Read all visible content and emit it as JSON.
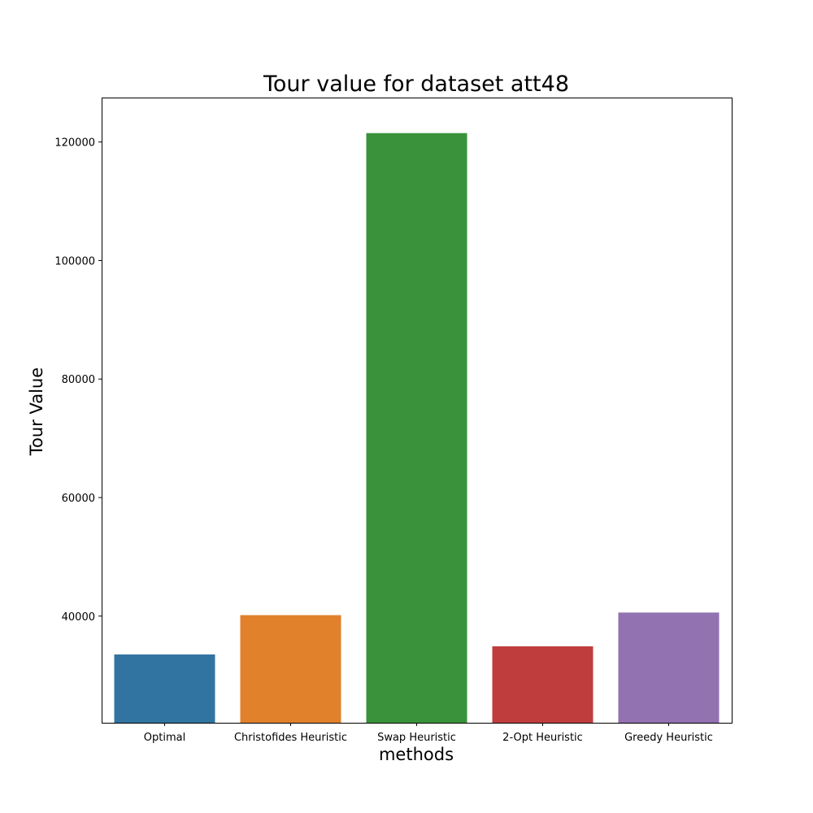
{
  "chart_data": {
    "type": "bar",
    "title": "Tour value for dataset att48",
    "xlabel": "methods",
    "ylabel": "Tour Value",
    "categories": [
      "Optimal",
      "Christofides Heuristic",
      "Swap Heuristic",
      "2-Opt Heuristic",
      "Greedy Heuristic"
    ],
    "values": [
      33523,
      40159,
      121500,
      34900,
      40600
    ],
    "colors": [
      "#3274a1",
      "#e1812c",
      "#3a923a",
      "#c03d3e",
      "#9372b2"
    ],
    "ylim": [
      22000,
      127500
    ],
    "yticks": [
      40000,
      60000,
      80000,
      100000,
      120000
    ],
    "ytick_labels": [
      "40000",
      "60000",
      "80000",
      "100000",
      "120000"
    ],
    "grid": false,
    "legend": null
  }
}
